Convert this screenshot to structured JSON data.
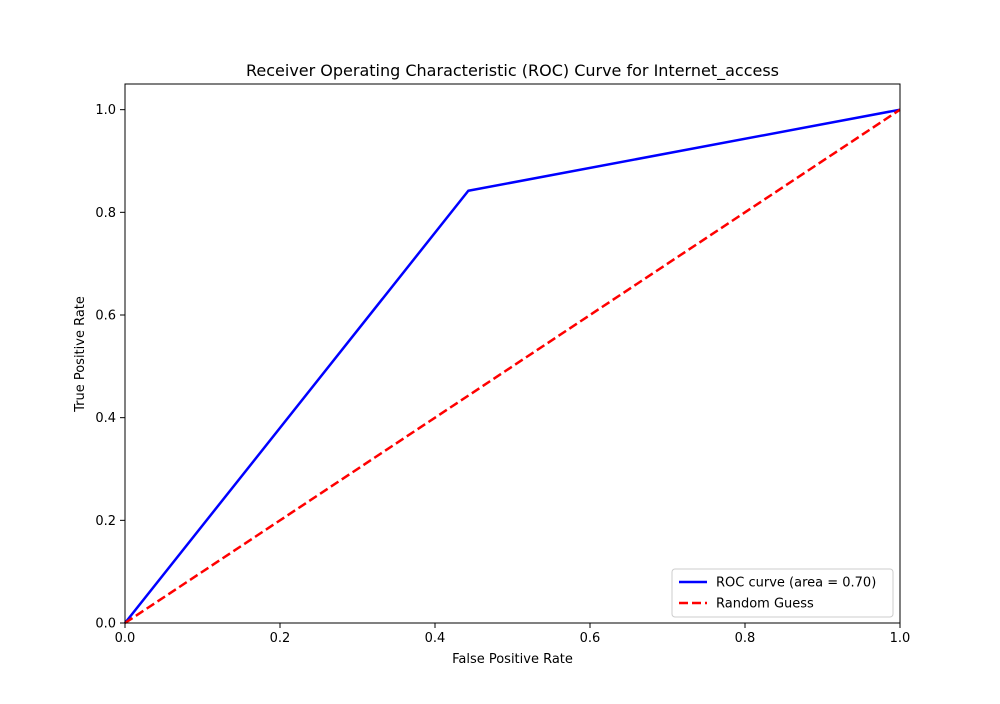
{
  "chart_data": {
    "type": "line",
    "title": "Receiver Operating Characteristic (ROC) Curve for Internet_access",
    "xlabel": "False Positive Rate",
    "ylabel": "True Positive Rate",
    "xlim": [
      0.0,
      1.0
    ],
    "ylim": [
      0.0,
      1.05
    ],
    "xticks": [
      0.0,
      0.2,
      0.4,
      0.6,
      0.8,
      1.0
    ],
    "yticks": [
      0.0,
      0.2,
      0.4,
      0.6,
      0.8,
      1.0
    ],
    "xtick_labels": [
      "0.0",
      "0.2",
      "0.4",
      "0.6",
      "0.8",
      "1.0"
    ],
    "ytick_labels": [
      "0.0",
      "0.2",
      "0.4",
      "0.6",
      "0.8",
      "1.0"
    ],
    "grid": false,
    "legend_position": "lower-right",
    "series": [
      {
        "name": "ROC curve (area = 0.70)",
        "color": "#0000ff",
        "dash": "solid",
        "x": [
          0.0,
          0.443,
          1.0
        ],
        "y": [
          0.0,
          0.842,
          1.0
        ]
      },
      {
        "name": "Random Guess",
        "color": "#ff0000",
        "dash": "dashed",
        "x": [
          0.0,
          1.0
        ],
        "y": [
          0.0,
          1.0
        ]
      }
    ]
  }
}
